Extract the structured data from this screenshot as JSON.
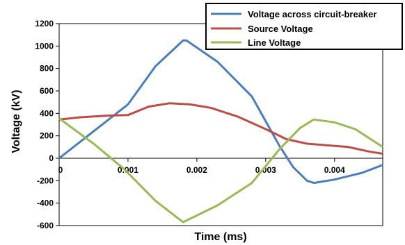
{
  "chart_data": {
    "type": "line",
    "title": "",
    "xlabel": "Time (ms)",
    "ylabel": "Voltage (kV)",
    "xlim": [
      0,
      0.0047
    ],
    "ylim": [
      -600,
      1200
    ],
    "x_ticks": [
      "0",
      "0.001",
      "0.002",
      "0.003",
      "0.004"
    ],
    "y_ticks": [
      "1200",
      "1000",
      "800",
      "600",
      "400",
      "200",
      "0",
      "-200",
      "-400",
      "-600"
    ],
    "grid": false,
    "legend_position": "top-right",
    "series": [
      {
        "name": "Voltage across circuit-breaker",
        "color": "#4a7ebb",
        "x": [
          0,
          0.0005,
          0.001,
          0.0014,
          0.0018,
          0.00185,
          0.0023,
          0.0028,
          0.0032,
          0.0034,
          0.0036,
          0.0037,
          0.004,
          0.0044,
          0.0047
        ],
        "y": [
          0,
          240,
          480,
          820,
          1050,
          1050,
          860,
          550,
          110,
          -80,
          -200,
          -220,
          -190,
          -130,
          -60
        ]
      },
      {
        "name": "Source Voltage",
        "color": "#be4b48",
        "x": [
          0,
          0.0003,
          0.0007,
          0.001,
          0.0013,
          0.0016,
          0.0019,
          0.0022,
          0.0026,
          0.003,
          0.0033,
          0.0036,
          0.0038,
          0.0042,
          0.0045,
          0.0047
        ],
        "y": [
          345,
          365,
          380,
          385,
          460,
          490,
          480,
          450,
          370,
          260,
          170,
          130,
          120,
          100,
          60,
          40
        ]
      },
      {
        "name": "Line Voltage",
        "color": "#98b954",
        "x": [
          0,
          0.0005,
          0.00095,
          0.0014,
          0.0018,
          0.0023,
          0.0028,
          0.0032,
          0.0035,
          0.0037,
          0.004,
          0.0043,
          0.0047
        ],
        "y": [
          355,
          130,
          -100,
          -380,
          -570,
          -420,
          -220,
          80,
          270,
          345,
          320,
          260,
          100
        ]
      }
    ]
  }
}
